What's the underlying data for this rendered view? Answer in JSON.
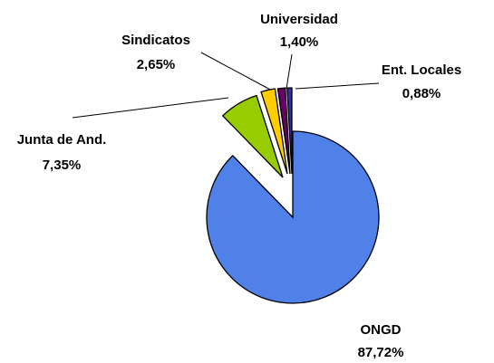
{
  "chart_data": {
    "type": "pie",
    "categories": [
      "ONGD",
      "Junta de And.",
      "Sindicatos",
      "Universidad",
      "Ent. Locales"
    ],
    "values": [
      87.72,
      7.35,
      2.65,
      1.4,
      0.88
    ],
    "value_labels": [
      "87,72%",
      "7,35%",
      "2,65%",
      "1,40%",
      "0,88%"
    ],
    "colors": [
      "#4f81e8",
      "#99cc00",
      "#ffcc00",
      "#660066",
      "#333399"
    ]
  }
}
